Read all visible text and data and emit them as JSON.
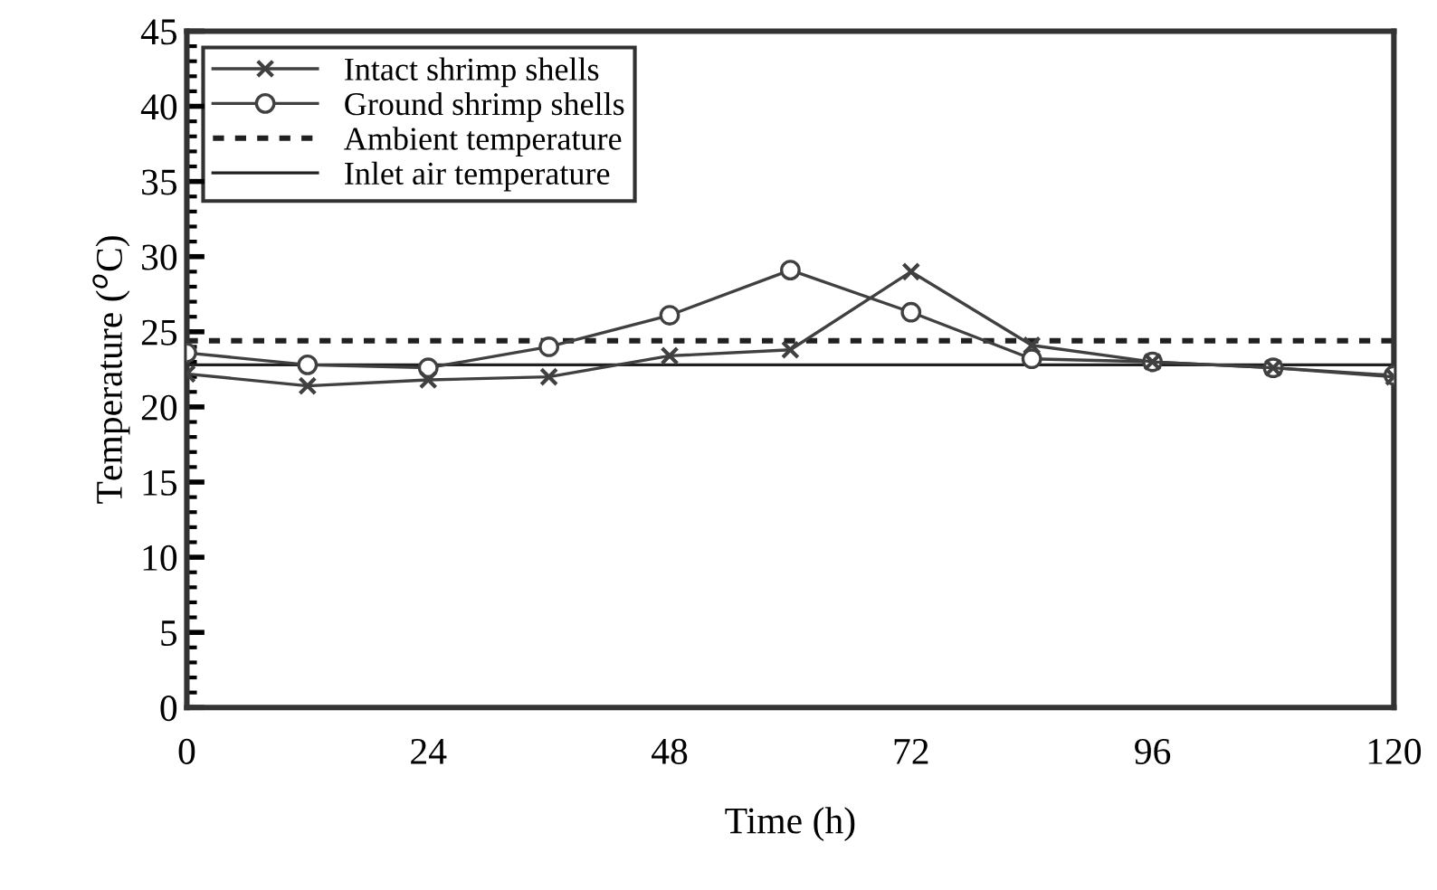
{
  "chart_data": {
    "type": "line",
    "xlabel": "Time (h)",
    "ylabel": "Temperature ($^{o}$C)",
    "xlim": [
      0,
      120
    ],
    "xticks": [
      0,
      24,
      48,
      72,
      96,
      120
    ],
    "ylim": [
      0,
      45
    ],
    "yticks": [
      0,
      5,
      10,
      15,
      20,
      25,
      30,
      35,
      40,
      45
    ],
    "grid": false,
    "legend": "top left",
    "series": [
      {
        "name": "Intact shrimp shells",
        "color": "#404040",
        "marker": "cross",
        "line_style": "solid",
        "x": [
          0,
          12,
          24,
          36,
          48,
          60,
          72,
          84,
          96,
          108,
          120
        ],
        "values": [
          22.2,
          21.4,
          21.8,
          22.0,
          23.4,
          23.8,
          29.0,
          24.1,
          23.0,
          22.6,
          22.0
        ]
      },
      {
        "name": "Ground shrimp shells",
        "color": "#404040",
        "marker": "circle",
        "line_style": "solid",
        "x": [
          0,
          12,
          24,
          36,
          48,
          60,
          72,
          84,
          96,
          108,
          120
        ],
        "values": [
          23.6,
          22.8,
          22.6,
          24.0,
          26.1,
          29.1,
          26.3,
          23.2,
          23.0,
          22.6,
          22.1
        ]
      },
      {
        "name": "Ambient temperature",
        "color": "#202020",
        "marker": "none",
        "line_style": "dotted",
        "x": [
          0,
          120
        ],
        "values": [
          24.4,
          24.4
        ]
      },
      {
        "name": "Inlet air temperature",
        "color": "#202020",
        "marker": "none",
        "line_style": "solid",
        "x": [
          0,
          120
        ],
        "values": [
          22.8,
          22.8
        ]
      }
    ]
  }
}
